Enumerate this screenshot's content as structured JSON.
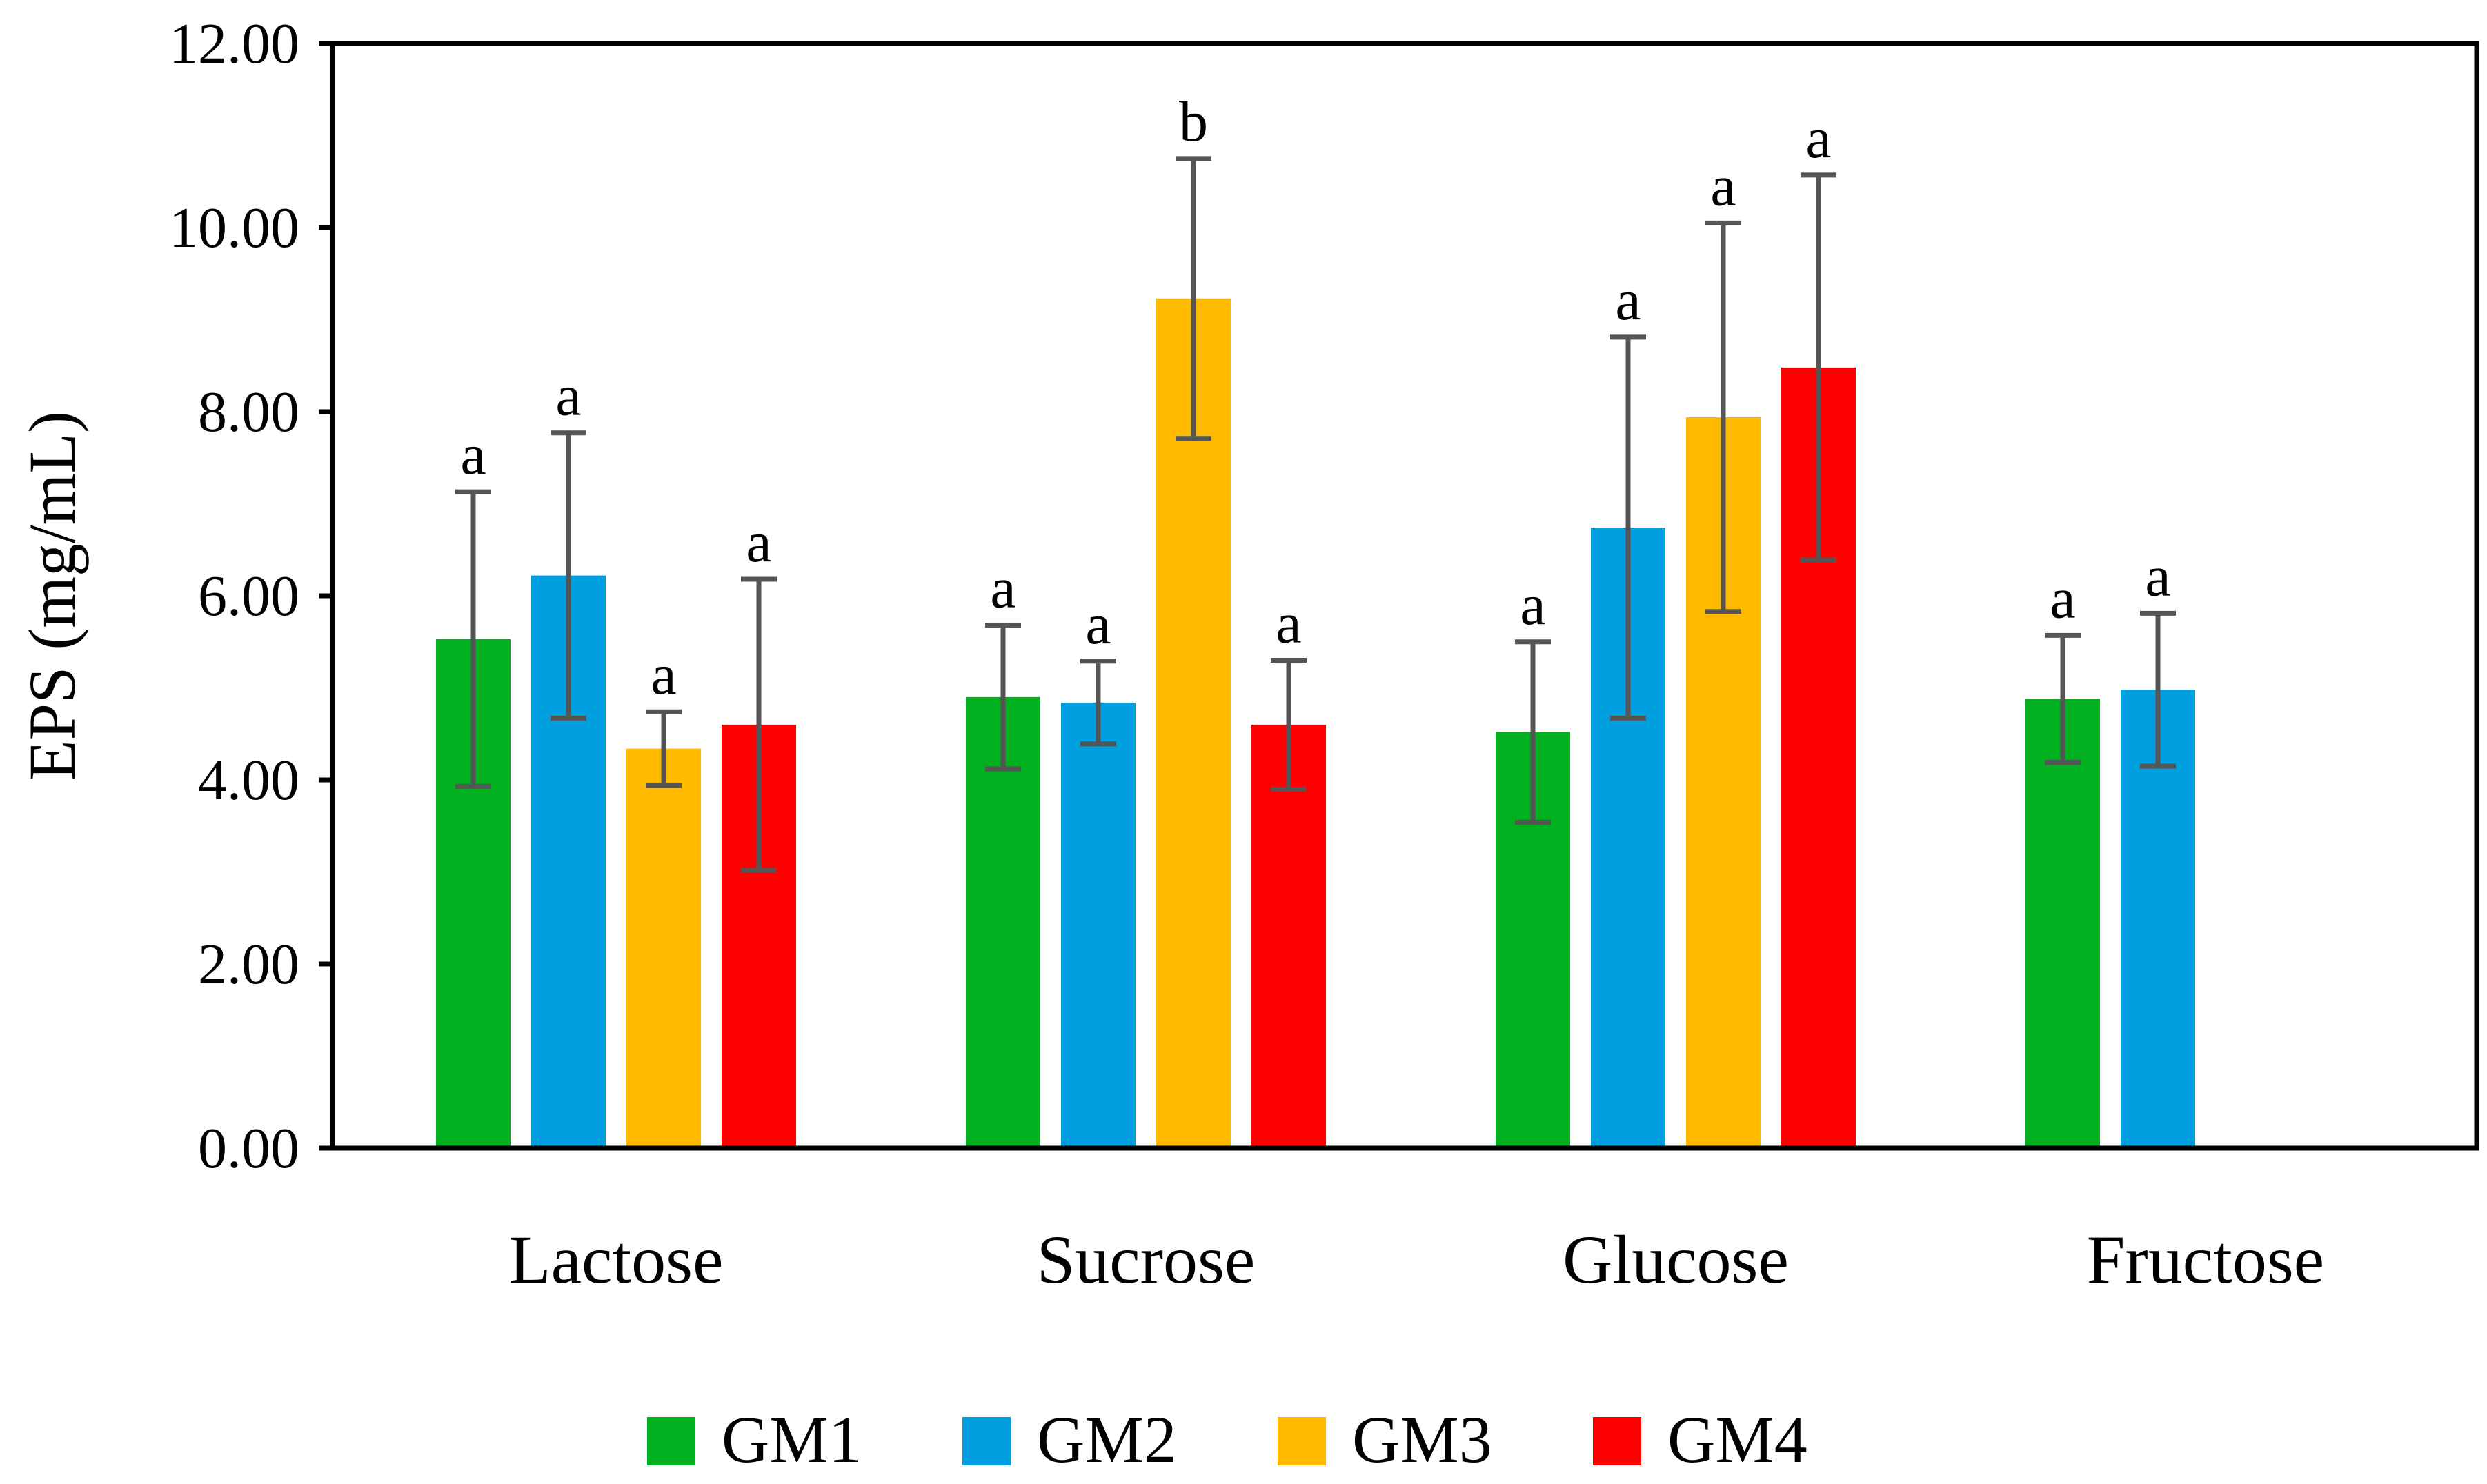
{
  "chart_data": {
    "type": "bar",
    "title": "",
    "xlabel": "",
    "ylabel": "EPS (mg/mL)",
    "ylim": [
      0,
      12
    ],
    "yticks": [
      "0.00",
      "2.00",
      "4.00",
      "6.00",
      "8.00",
      "10.00",
      "12.00"
    ],
    "grid": false,
    "legend_position": "bottom",
    "categories": [
      "Lactose",
      "Sucrose",
      "Glucose",
      "Fructose"
    ],
    "series": [
      {
        "name": "GM1",
        "color": "#00b01e",
        "values": [
          5.53,
          4.9,
          4.52,
          4.88
        ],
        "errors": [
          1.6,
          0.78,
          0.98,
          0.69
        ],
        "letters": [
          "a",
          "a",
          "a",
          "a"
        ]
      },
      {
        "name": "GM2",
        "color": "#009fe0",
        "values": [
          6.22,
          4.84,
          6.74,
          4.98
        ],
        "errors": [
          1.55,
          0.45,
          2.07,
          0.83
        ],
        "letters": [
          "a",
          "a",
          "a",
          "a"
        ]
      },
      {
        "name": "GM3",
        "color": "#ffba00",
        "values": [
          4.34,
          9.23,
          7.94,
          null
        ],
        "errors": [
          0.4,
          1.52,
          2.11,
          null
        ],
        "letters": [
          "a",
          "b",
          "a",
          null
        ]
      },
      {
        "name": "GM4",
        "color": "#ff0000",
        "values": [
          4.6,
          4.6,
          8.48,
          null
        ],
        "errors": [
          1.58,
          0.7,
          2.09,
          null
        ],
        "letters": [
          "a",
          "a",
          "a",
          null
        ]
      }
    ]
  }
}
